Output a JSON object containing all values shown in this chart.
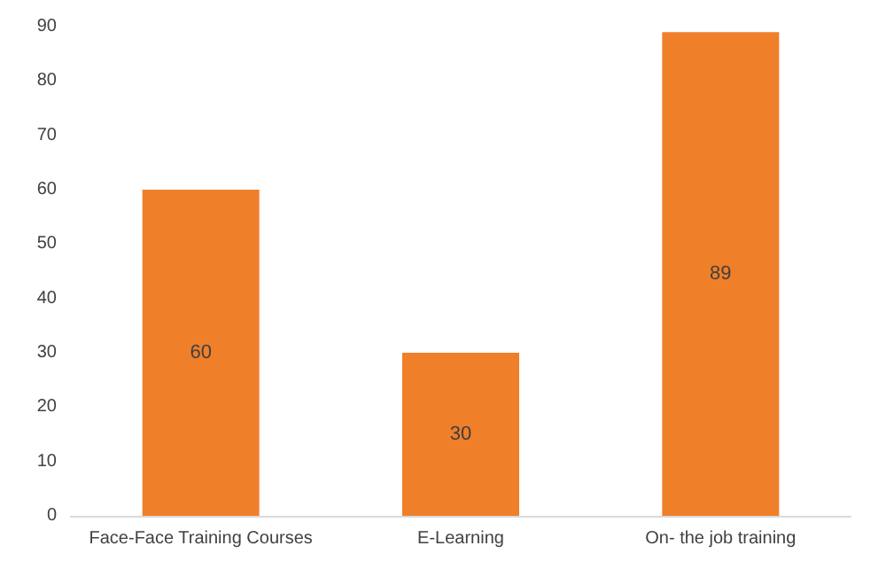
{
  "chart_data": {
    "type": "bar",
    "categories": [
      "Face-Face Training Courses",
      "E-Learning",
      "On- the job training"
    ],
    "values": [
      60,
      30,
      89
    ],
    "color": "#f07f2a",
    "ylim": [
      0,
      90
    ],
    "yticks": [
      0,
      10,
      20,
      30,
      40,
      50,
      60,
      70,
      80,
      90
    ],
    "grid": false,
    "data_labels": true
  }
}
